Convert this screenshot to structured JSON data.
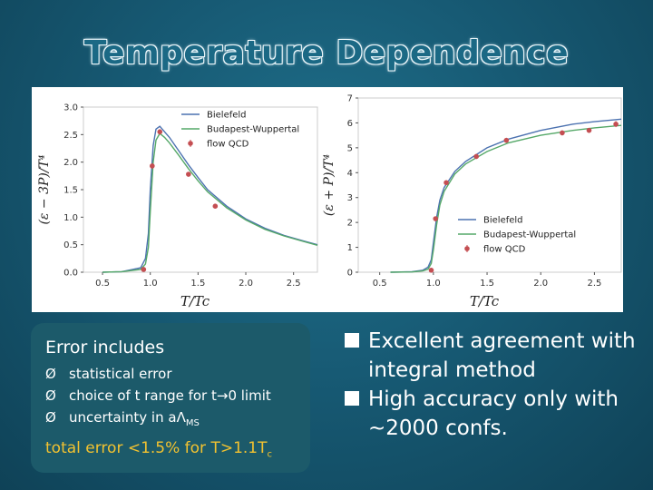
{
  "slide": {
    "title": "Temperature Dependence"
  },
  "left_panel": {
    "header": "Error includes",
    "items": [
      {
        "marker": "Ø",
        "text": "statistical error"
      },
      {
        "marker": "Ø",
        "text": "choice of t range for t→0 limit"
      },
      {
        "marker": "Ø",
        "text": "uncertainty in aΛ",
        "sub": "MS"
      }
    ],
    "total_main": "total error <1.5% for T>1.1T",
    "total_sub": "c"
  },
  "right_panel": {
    "bullets": [
      "Excellent agreement with integral method",
      "High accuracy only with ~2000 confs."
    ]
  },
  "colors": {
    "bielefeld": "#4c72b0",
    "budapest": "#55a868",
    "flow": "#c44e52",
    "total_text": "#f2c230"
  },
  "chart_data": [
    {
      "type": "line",
      "ylabel": "(ε − 3P)/T⁴",
      "xlabel": "T/Tc",
      "xlim": [
        0.3,
        2.75
      ],
      "ylim": [
        0,
        3.0
      ],
      "xticks": [
        "0.5",
        "1.0",
        "1.5",
        "2.0",
        "2.5"
      ],
      "yticks": [
        "0.0",
        "0.5",
        "1.0",
        "1.5",
        "2.0",
        "2.5",
        "3.0"
      ],
      "legend_position": "top-right",
      "series": [
        {
          "name": "Bielefeld",
          "kind": "line",
          "x": [
            0.5,
            0.7,
            0.9,
            0.95,
            0.98,
            1.0,
            1.03,
            1.06,
            1.1,
            1.15,
            1.2,
            1.3,
            1.4,
            1.5,
            1.6,
            1.8,
            2.0,
            2.2,
            2.4,
            2.6,
            2.75
          ],
          "y": [
            0.0,
            0.01,
            0.08,
            0.25,
            0.7,
            1.5,
            2.3,
            2.6,
            2.65,
            2.55,
            2.45,
            2.2,
            1.95,
            1.72,
            1.5,
            1.2,
            0.97,
            0.8,
            0.67,
            0.57,
            0.5
          ]
        },
        {
          "name": "Budapest-Wuppertal",
          "kind": "line",
          "x": [
            0.5,
            0.7,
            0.9,
            0.95,
            0.98,
            1.0,
            1.03,
            1.06,
            1.1,
            1.15,
            1.2,
            1.3,
            1.4,
            1.5,
            1.6,
            1.8,
            2.0,
            2.2,
            2.4,
            2.6,
            2.75
          ],
          "y": [
            0.0,
            0.01,
            0.05,
            0.15,
            0.45,
            1.1,
            2.0,
            2.4,
            2.52,
            2.45,
            2.35,
            2.12,
            1.88,
            1.66,
            1.46,
            1.17,
            0.95,
            0.78,
            0.66,
            0.56,
            0.49
          ]
        },
        {
          "name": "flow QCD",
          "kind": "points",
          "x": [
            0.93,
            1.02,
            1.1,
            1.4,
            1.68
          ],
          "y": [
            0.05,
            1.93,
            2.55,
            1.78,
            1.2
          ],
          "err": [
            0.03,
            0.05,
            0.05,
            0.04,
            0.04
          ]
        }
      ]
    },
    {
      "type": "line",
      "ylabel": "(ε + P)/T⁴",
      "xlabel": "T/Tc",
      "xlim": [
        0.3,
        2.75
      ],
      "ylim": [
        0,
        7
      ],
      "xticks": [
        "0.5",
        "1.0",
        "1.5",
        "2.0",
        "2.5"
      ],
      "yticks": [
        "0",
        "1",
        "2",
        "3",
        "4",
        "5",
        "6",
        "7"
      ],
      "legend_position": "lower-right",
      "series": [
        {
          "name": "Bielefeld",
          "kind": "line",
          "x": [
            0.6,
            0.8,
            0.9,
            0.95,
            0.98,
            1.0,
            1.03,
            1.06,
            1.1,
            1.2,
            1.3,
            1.5,
            1.7,
            2.0,
            2.3,
            2.5,
            2.75
          ],
          "y": [
            0.0,
            0.02,
            0.08,
            0.2,
            0.5,
            1.2,
            2.2,
            2.9,
            3.4,
            4.05,
            4.45,
            5.0,
            5.35,
            5.7,
            5.95,
            6.05,
            6.15
          ]
        },
        {
          "name": "Budapest-Wuppertal",
          "kind": "line",
          "x": [
            0.6,
            0.8,
            0.9,
            0.95,
            0.98,
            1.0,
            1.03,
            1.06,
            1.1,
            1.2,
            1.3,
            1.5,
            1.7,
            2.0,
            2.3,
            2.5,
            2.75
          ],
          "y": [
            0.0,
            0.01,
            0.05,
            0.12,
            0.35,
            0.9,
            1.9,
            2.7,
            3.25,
            3.95,
            4.35,
            4.85,
            5.2,
            5.5,
            5.7,
            5.8,
            5.9
          ]
        },
        {
          "name": "flow QCD",
          "kind": "points",
          "x": [
            0.98,
            1.02,
            1.12,
            1.4,
            1.68,
            2.2,
            2.45,
            2.7
          ],
          "y": [
            0.08,
            2.15,
            3.6,
            4.65,
            5.3,
            5.6,
            5.7,
            5.95
          ],
          "err": [
            0.05,
            0.08,
            0.1,
            0.1,
            0.1,
            0.1,
            0.1,
            0.12
          ]
        }
      ]
    }
  ]
}
